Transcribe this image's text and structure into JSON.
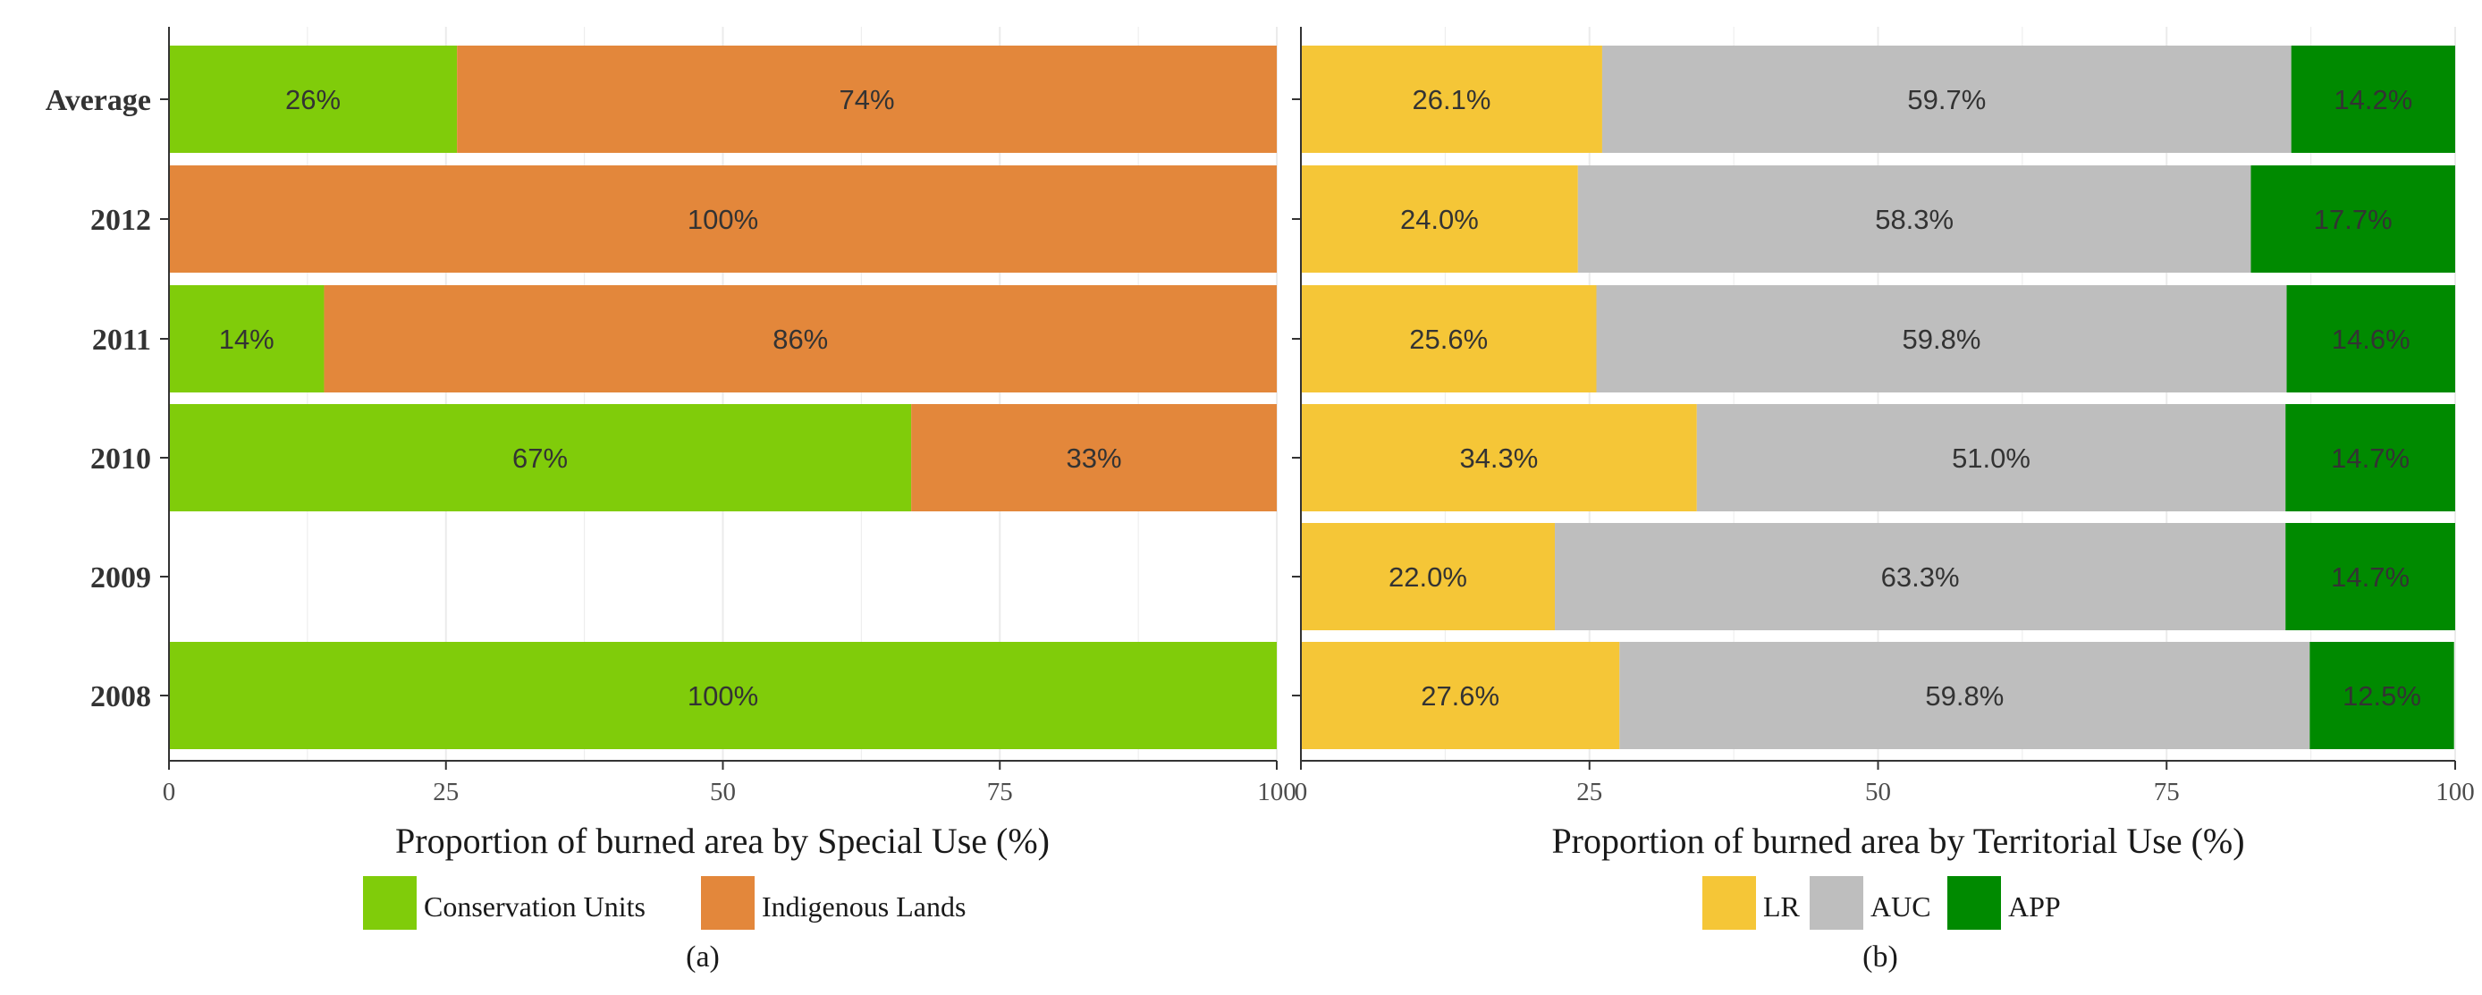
{
  "colors": {
    "conservation": "#80cc0a",
    "indigenous": "#e3873b",
    "lr": "#f5c637",
    "auc": "#bebebe",
    "app": "#008a00",
    "grid": "#ebebeb",
    "axis": "#333333",
    "segment_text": "#333333"
  },
  "chart_data": [
    {
      "type": "bar",
      "orientation": "horizontal",
      "stacked": true,
      "caption": "(a)",
      "xlabel": "Proportion of burned area  by Special Use (%)",
      "ylabel": "",
      "xlim": [
        0,
        100
      ],
      "xticks": [
        "0",
        "25",
        "50",
        "75",
        "100"
      ],
      "grid": true,
      "legend": "bottom",
      "categories": [
        "Average",
        "2012",
        "2011",
        "2010",
        "2009",
        "2008"
      ],
      "series": [
        {
          "name": "Conservation Units",
          "color_key": "conservation",
          "values": [
            26,
            0,
            14,
            67,
            0,
            100
          ]
        },
        {
          "name": "Indigenous Lands",
          "color_key": "indigenous",
          "values": [
            74,
            100,
            86,
            33,
            0,
            0
          ]
        }
      ],
      "labels": [
        [
          "26%",
          "74%"
        ],
        [
          "",
          "100%"
        ],
        [
          "14%",
          "86%"
        ],
        [
          "67%",
          "33%"
        ],
        [
          "",
          ""
        ],
        [
          "100%",
          ""
        ]
      ]
    },
    {
      "type": "bar",
      "orientation": "horizontal",
      "stacked": true,
      "caption": "(b)",
      "xlabel": "Proportion of burned area  by Territorial Use (%)",
      "ylabel": "",
      "xlim": [
        0,
        100
      ],
      "xticks": [
        "0",
        "25",
        "50",
        "75",
        "100"
      ],
      "grid": true,
      "legend": "bottom",
      "categories": [
        "Average",
        "2012",
        "2011",
        "2010",
        "2009",
        "2008"
      ],
      "series": [
        {
          "name": "LR",
          "color_key": "lr",
          "values": [
            26.1,
            24.0,
            25.6,
            34.3,
            22.0,
            27.6
          ]
        },
        {
          "name": "AUC",
          "color_key": "auc",
          "values": [
            59.7,
            58.3,
            59.8,
            51.0,
            63.3,
            59.8
          ]
        },
        {
          "name": "APP",
          "color_key": "app",
          "values": [
            14.2,
            17.7,
            14.6,
            14.7,
            14.7,
            12.5
          ]
        }
      ],
      "labels": [
        [
          "26.1%",
          "59.7%",
          "14.2%"
        ],
        [
          "24.0%",
          "58.3%",
          "17.7%"
        ],
        [
          "25.6%",
          "59.8%",
          "14.6%"
        ],
        [
          "34.3%",
          "51.0%",
          "14.7%"
        ],
        [
          "22.0%",
          "63.3%",
          "14.7%"
        ],
        [
          "27.6%",
          "59.8%",
          "12.5%"
        ]
      ]
    }
  ]
}
